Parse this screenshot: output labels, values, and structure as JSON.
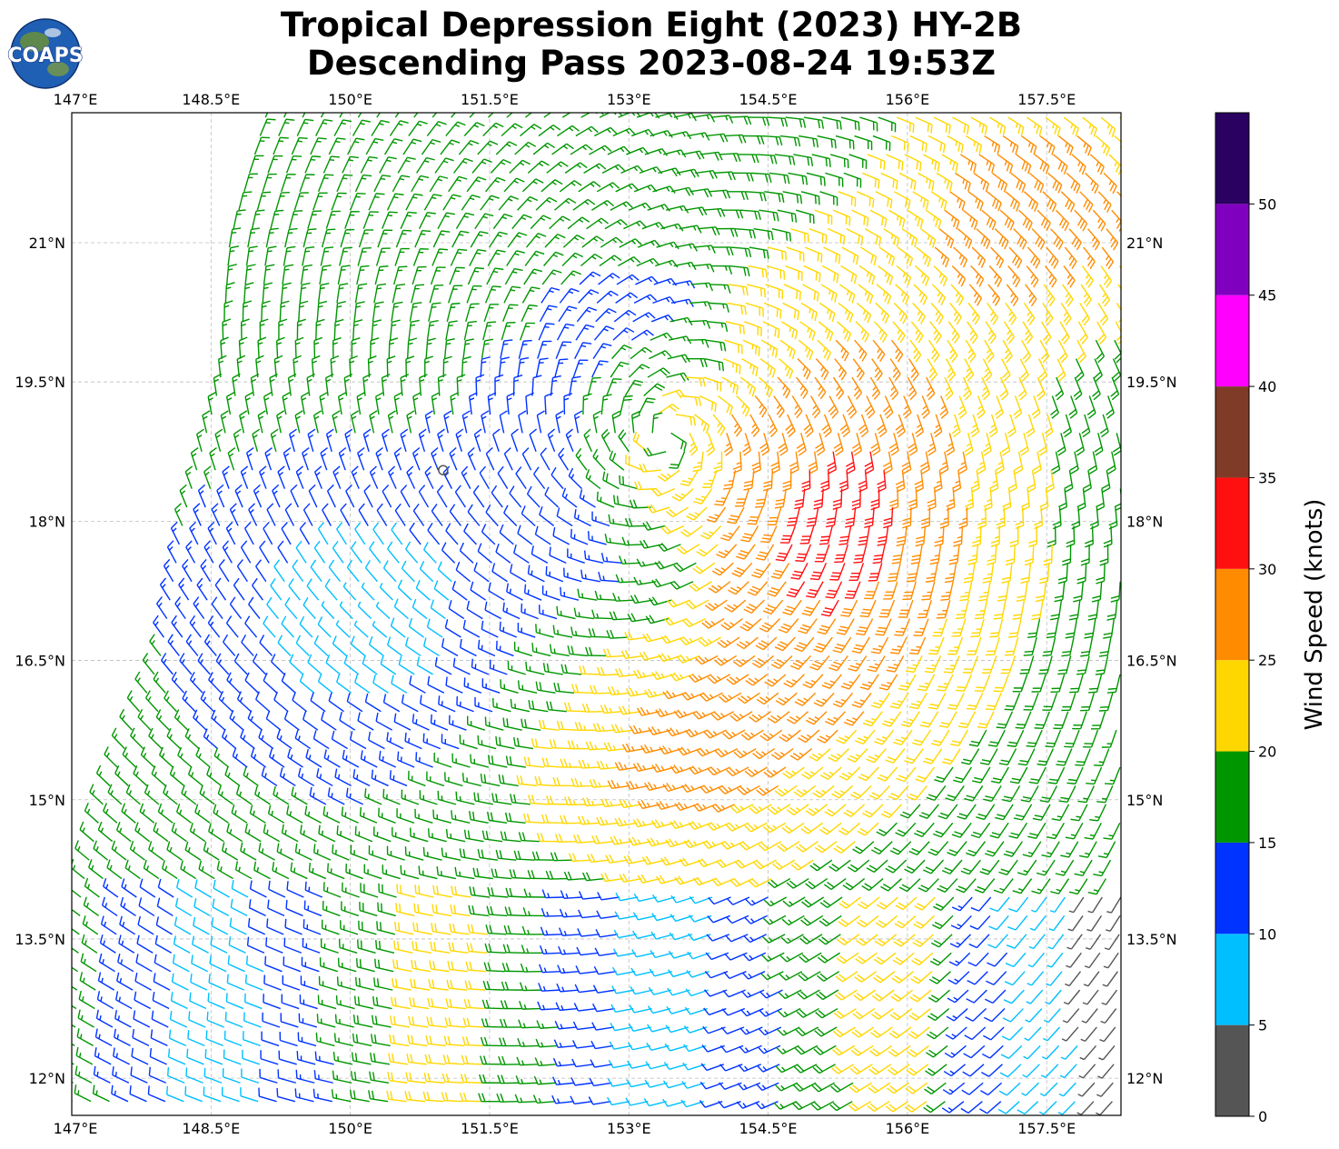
{
  "title": {
    "line1": "Tropical Depression Eight (2023) HY-2B",
    "line2": "Descending Pass 2023-08-24 19:53Z"
  },
  "logo": {
    "text": "COAPS",
    "icon": "globe-logo-icon"
  },
  "map": {
    "lon_range": [
      147.0,
      158.3
    ],
    "lat_range": [
      11.6,
      22.4
    ],
    "grid": true,
    "lon_ticks": [
      {
        "value": 147.0,
        "label": "147°E"
      },
      {
        "value": 148.5,
        "label": "148.5°E"
      },
      {
        "value": 150.0,
        "label": "150°E"
      },
      {
        "value": 151.5,
        "label": "151.5°E"
      },
      {
        "value": 153.0,
        "label": "153°E"
      },
      {
        "value": 154.5,
        "label": "154.5°E"
      },
      {
        "value": 156.0,
        "label": "156°E"
      },
      {
        "value": 157.5,
        "label": "157.5°E"
      }
    ],
    "lat_ticks": [
      {
        "value": 21.0,
        "label": "21°N"
      },
      {
        "value": 19.5,
        "label": "19.5°N"
      },
      {
        "value": 18.0,
        "label": "18°N"
      },
      {
        "value": 16.5,
        "label": "16.5°N"
      },
      {
        "value": 15.0,
        "label": "15°N"
      },
      {
        "value": 13.5,
        "label": "13.5°N"
      },
      {
        "value": 12.0,
        "label": "12°N"
      }
    ],
    "storm_center": {
      "lon": 153.4,
      "lat": 18.9
    },
    "marker": {
      "lon": 151.0,
      "lat": 18.55,
      "icon": "circle-marker-icon"
    },
    "swath_west_edge": [
      {
        "lat": 22.4,
        "lon": 149.1
      },
      {
        "lat": 21.0,
        "lon": 148.7
      },
      {
        "lat": 19.5,
        "lon": 148.6
      },
      {
        "lat": 18.0,
        "lon": 148.2
      },
      {
        "lat": 16.5,
        "lon": 147.95
      },
      {
        "lat": 15.0,
        "lon": 147.35
      },
      {
        "lat": 14.0,
        "lon": 147.1
      },
      {
        "lat": 11.6,
        "lon": 147.0
      }
    ]
  },
  "colorbar": {
    "label": "Wind Speed (knots)",
    "bounds": [
      0,
      5,
      10,
      15,
      20,
      25,
      30,
      35,
      40,
      45,
      50,
      55
    ],
    "tick_labels": [
      "0",
      "5",
      "10",
      "15",
      "20",
      "25",
      "30",
      "35",
      "40",
      "45",
      "50"
    ],
    "colors": [
      "#555555",
      "#00bfff",
      "#0033ff",
      "#009600",
      "#ffd700",
      "#ff8c00",
      "#ff1010",
      "#7f3b28",
      "#ff00ff",
      "#8000c0",
      "#2a0060"
    ]
  }
}
